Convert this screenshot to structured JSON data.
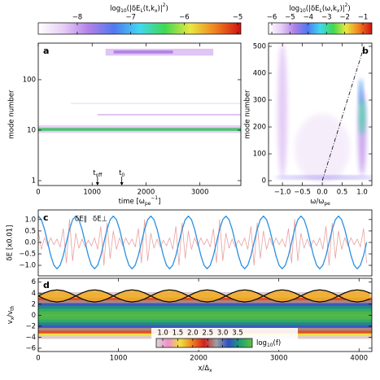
{
  "chart_data": [
    {
      "type": "heatmap",
      "panel_label": "a",
      "colorbar": {
        "label": [
          "log",
          "10",
          "(|δE",
          "L",
          "(t,k",
          "x",
          ")|",
          "2",
          ")"
        ],
        "lim": [
          -8.73,
          -4.94
        ],
        "ticks": [
          {
            "value": -8,
            "label": "−8"
          },
          {
            "value": -7,
            "label": "−7"
          },
          {
            "value": -6,
            "label": "−6"
          },
          {
            "value": -5,
            "label": "−5"
          }
        ],
        "colormap": [
          "#ffffff",
          "#e6cdf5",
          "#b080e8",
          "#5078f0",
          "#40d8f0",
          "#40d850",
          "#e8e840",
          "#f08020",
          "#d01010"
        ]
      },
      "xlim": [
        0,
        3760
      ],
      "xticks": [
        0,
        1000,
        2000,
        3000
      ],
      "xlabel": [
        "time [ω",
        "pe",
        "−1",
        "]"
      ],
      "ylim": [
        0.8,
        530
      ],
      "ylog": true,
      "yticks": [
        1,
        10,
        100
      ],
      "ylabel": "mode number",
      "annotations": [
        {
          "x": 1100,
          "text": [
            "t",
            "off"
          ]
        },
        {
          "x": 1550,
          "text": [
            "t",
            "0"
          ]
        }
      ],
      "bands": [
        {
          "x0": 0,
          "x1": 3760,
          "y0": 8.8,
          "y1": 12.5,
          "level": -8.3
        },
        {
          "x0": 0,
          "x1": 3760,
          "y0": 9.6,
          "y1": 11.2,
          "level": -6.6
        },
        {
          "x0": 0,
          "x1": 3760,
          "y0": 10,
          "y1": 10.6,
          "level": -5.4
        },
        {
          "x0": 1100,
          "x1": 3760,
          "y0": 19.5,
          "y1": 21,
          "level": -8.2
        },
        {
          "x0": 600,
          "x1": 3760,
          "y0": 33,
          "y1": 34.5,
          "level": -8.4
        },
        {
          "x0": 1250,
          "x1": 3250,
          "y0": 300,
          "y1": 410,
          "level": -8.2
        },
        {
          "x0": 1400,
          "x1": 2500,
          "y0": 330,
          "y1": 380,
          "level": -7.8
        }
      ]
    },
    {
      "type": "spectrum",
      "panel_label": "b",
      "colorbar": {
        "label": [
          "log",
          "10",
          "(|δE",
          "L",
          "(ω,k",
          "x",
          ")|",
          "2",
          ")"
        ],
        "lim": [
          -6.18,
          -0.51
        ],
        "ticks": [
          {
            "value": -6,
            "label": "−6"
          },
          {
            "value": -5,
            "label": "−5"
          },
          {
            "value": -4,
            "label": "−4"
          },
          {
            "value": -3,
            "label": "−3"
          },
          {
            "value": -2,
            "label": "−2"
          },
          {
            "value": -1,
            "label": "−1"
          }
        ],
        "colormap": [
          "#ffffff",
          "#e6cdf5",
          "#b080e8",
          "#5078f0",
          "#40d8f0",
          "#40d850",
          "#e8e840",
          "#f08020",
          "#d01010"
        ]
      },
      "xlim": [
        -1.35,
        1.245
      ],
      "xticks": [
        {
          "value": -1,
          "label": "−1.0"
        },
        {
          "value": -0.5,
          "label": "−0.5"
        },
        {
          "value": 0,
          "label": "0.0"
        },
        0.5,
        {
          "value": 1,
          "label": "1.0"
        }
      ],
      "xlabel": [
        "ω/ω",
        "pe"
      ],
      "ylim": [
        -18,
        512
      ],
      "yticks": [
        0,
        100,
        200,
        300,
        400,
        500
      ],
      "ylabel": "mode number",
      "blobs": [
        {
          "x": -1.0,
          "y": 260,
          "rx": 0.12,
          "ry": 250,
          "level": -5.4
        },
        {
          "x": 0.0,
          "y": 120,
          "rx": 0.7,
          "ry": 130,
          "level": -5.9
        },
        {
          "x": 1.0,
          "y": 180,
          "rx": 0.1,
          "ry": 160,
          "level": -5.0
        },
        {
          "x": 1.0,
          "y": 240,
          "rx": 0.07,
          "ry": 70,
          "level": -3.0
        },
        {
          "x": 0.97,
          "y": 330,
          "rx": 0.05,
          "ry": 50,
          "level": -3.8
        },
        {
          "x": 0.1,
          "y": 12,
          "rx": 1.3,
          "ry": 5,
          "level": -4.5
        }
      ],
      "guide": {
        "x": [
          0,
          1.05
        ],
        "y": [
          0,
          500
        ]
      }
    },
    {
      "type": "line",
      "panel_label": "c",
      "xlim": [
        0,
        4160
      ],
      "ylim": [
        -1.46,
        1.42
      ],
      "yticks": [
        {
          "value": 1,
          "label": "1.0"
        },
        0.5,
        {
          "value": 0,
          "label": "0.0"
        },
        {
          "value": -0.5,
          "label": "−0.5"
        },
        {
          "value": -1,
          "label": "−1.0"
        }
      ],
      "ylabel": "δE [x0.01]",
      "x": [
        0,
        39,
        78,
        117,
        156,
        195,
        234,
        273,
        312,
        351,
        390,
        429,
        468,
        507,
        546,
        585,
        624,
        663,
        702,
        741,
        780,
        819,
        858,
        897,
        936,
        975,
        1014,
        1053,
        1092,
        1131,
        1170,
        1209,
        1248,
        1287,
        1326,
        1365,
        1404,
        1443,
        1482,
        1521,
        1560,
        1599,
        1638,
        1677,
        1716,
        1755,
        1794,
        1833,
        1872,
        1911,
        1950,
        1989,
        2028,
        2067,
        2106,
        2145,
        2184,
        2223,
        2262,
        2301,
        2340,
        2379,
        2418,
        2457,
        2496,
        2535,
        2574,
        2613,
        2652,
        2691,
        2730,
        2769,
        2808,
        2847,
        2886,
        2925,
        2964,
        3003,
        3042,
        3081,
        3120,
        3159,
        3198,
        3237,
        3276,
        3315,
        3354,
        3393,
        3432,
        3471,
        3510,
        3549,
        3588,
        3627,
        3666,
        3705,
        3744,
        3783,
        3822,
        3861,
        3900,
        3939,
        3978,
        4017,
        4056,
        4095
      ],
      "series": [
        {
          "name": "δE∥",
          "color": "#e8a0a0",
          "values": [
            0.5,
            -0.3,
            0.2,
            -0.15,
            0.2,
            -0.1,
            0.15,
            -0.2,
            0.6,
            -0.9,
            1.0,
            -0.8,
            0.4,
            -0.25,
            0.15,
            -0.2,
            0.1,
            -0.15,
            0.2,
            -0.3,
            0.7,
            -1.0,
            0.85,
            -0.7,
            0.5,
            -0.3,
            0.2,
            -0.15,
            0.2,
            -0.1,
            0.15,
            -0.2,
            0.6,
            -0.9,
            1.0,
            -0.8,
            0.4,
            -0.25,
            0.15,
            -0.2,
            0.1,
            -0.15,
            0.2,
            -0.3,
            0.7,
            -1.0,
            0.85,
            -0.7,
            0.5,
            -0.3,
            0.2,
            -0.15,
            0.2,
            -0.1,
            0.15,
            -0.2,
            0.6,
            -0.9,
            1.0,
            -0.8,
            0.4,
            -0.25,
            0.15,
            -0.2,
            0.1,
            -0.15,
            0.2,
            -0.3,
            0.7,
            -1.0,
            0.85,
            -0.7,
            0.5,
            -0.3,
            0.2,
            -0.15,
            0.2,
            -0.1,
            0.15,
            -0.2,
            0.6,
            -0.9,
            1.0,
            -0.8,
            0.4,
            -0.25,
            0.15,
            -0.2,
            0.1,
            -0.15,
            0.2,
            -0.3,
            0.7,
            -1.0,
            0.85,
            -0.7,
            0.5,
            -0.3,
            0.2,
            -0.15,
            0.2,
            -0.1,
            0.15,
            -0.2,
            0.6,
            -0.9
          ]
        },
        {
          "name": "δE⊥",
          "color": "#2a8fe0",
          "values": [
            1.15,
            0.996,
            0.575,
            0,
            -0.575,
            -0.996,
            -1.15,
            -0.996,
            -0.575,
            0,
            0.575,
            0.996,
            1.15,
            0.996,
            0.575,
            0,
            -0.575,
            -0.996,
            -1.15,
            -0.996,
            -0.575,
            0,
            0.575,
            0.996,
            1.15,
            0.996,
            0.575,
            0,
            -0.575,
            -0.996,
            -1.15,
            -0.996,
            -0.575,
            0,
            0.575,
            0.996,
            1.15,
            0.996,
            0.575,
            0,
            -0.575,
            -0.996,
            -1.15,
            -0.996,
            -0.575,
            0,
            0.575,
            0.996,
            1.15,
            0.996,
            0.575,
            0,
            -0.575,
            -0.996,
            -1.15,
            -0.996,
            -0.575,
            0,
            0.575,
            0.996,
            1.15,
            0.996,
            0.575,
            0,
            -0.575,
            -0.996,
            -1.15,
            -0.996,
            -0.575,
            0,
            0.575,
            0.996,
            1.15,
            0.996,
            0.575,
            0,
            -0.575,
            -0.996,
            -1.15,
            -0.996,
            -0.575,
            0,
            0.575,
            0.996,
            1.15,
            0.996,
            0.575,
            0,
            -0.575,
            -0.996,
            -1.15,
            -0.996,
            -0.575,
            0,
            0.575,
            0.996,
            1.15,
            0.996,
            0.575,
            0,
            -0.575,
            -0.996,
            -1.15,
            -0.996,
            -0.575,
            0
          ]
        }
      ]
    },
    {
      "type": "phase-space",
      "panel_label": "d",
      "xlim": [
        0,
        4160
      ],
      "xticks": [
        0,
        1000,
        2000,
        3000,
        4000
      ],
      "xlabel": [
        "x/Δ",
        "x"
      ],
      "ylim": [
        -6.6,
        6.7
      ],
      "yticks": [
        {
          "value": -6,
          "label": "−6"
        },
        {
          "value": -4,
          "label": "−4"
        },
        {
          "value": -2,
          "label": "−2"
        },
        0,
        2,
        4,
        6
      ],
      "ylabel": [
        "v",
        "x",
        "/v",
        "th"
      ],
      "colorbar": {
        "label": [
          "log",
          "10",
          "(f)"
        ],
        "lim": [
          0.78,
          3.99
        ],
        "ticks": [
          {
            "value": 1,
            "label": "1.0"
          },
          1.5,
          {
            "value": 2,
            "label": "2.0"
          },
          2.5,
          {
            "value": 3,
            "label": "3.0"
          },
          3.5
        ],
        "colormap": [
          "#d8d8d8",
          "#f090c8",
          "#f0e040",
          "#f08020",
          "#d02020",
          "#a0a0a0",
          "#3050c0",
          "#20a070",
          "#60c040"
        ]
      },
      "profile": {
        "v": [
          -6,
          -5.5,
          -5,
          -4.5,
          -4,
          -3.5,
          -3,
          -2.5,
          -2,
          -1.5,
          -1,
          -0.5,
          0,
          0.5,
          1,
          1.5,
          2,
          2.5,
          3,
          3.5,
          4,
          4.5,
          5,
          5.5,
          6
        ],
        "level": [
          -2.94,
          -1.85,
          -0.85,
          0.05,
          0.86,
          1.57,
          2.19,
          2.71,
          3.14,
          3.47,
          3.71,
          3.85,
          3.9,
          3.85,
          3.71,
          3.47,
          3.14,
          2.71,
          2.19,
          1.57,
          0.86,
          0.05,
          -0.85,
          -1.85,
          -2.94
        ]
      },
      "trapped_level": 1.8,
      "separatrix": {
        "x": [
          0,
          78,
          156,
          234,
          312,
          390,
          468,
          546,
          624,
          702,
          780,
          858,
          936,
          1014,
          1092,
          1170,
          1248,
          1326,
          1404,
          1482,
          1560,
          1638,
          1716,
          1794,
          1872,
          1950,
          2028,
          2106,
          2184,
          2262,
          2340,
          2418,
          2496,
          2574,
          2652,
          2730,
          2808,
          2886,
          2964,
          3042,
          3120,
          3198,
          3276,
          3354,
          3432,
          3510,
          3588,
          3666,
          3744,
          3822,
          3900,
          3978,
          4056,
          4134
        ],
        "upper": [
          3.5,
          4.05,
          4.45,
          4.6,
          4.45,
          4.05,
          3.5,
          4.05,
          4.45,
          4.6,
          4.45,
          4.05,
          3.5,
          4.05,
          4.45,
          4.6,
          4.45,
          4.05,
          3.5,
          4.05,
          4.45,
          4.6,
          4.45,
          4.05,
          3.5,
          4.05,
          4.45,
          4.6,
          4.45,
          4.05,
          3.5,
          4.05,
          4.45,
          4.6,
          4.45,
          4.05,
          3.5,
          4.05,
          4.45,
          4.6,
          4.45,
          4.05,
          3.5,
          4.05,
          4.45,
          4.6,
          4.45,
          4.05,
          3.5,
          4.05,
          4.45,
          4.6,
          4.45,
          4.05
        ],
        "lower": [
          3.5,
          2.95,
          2.55,
          2.4,
          2.55,
          2.95,
          3.5,
          2.95,
          2.55,
          2.4,
          2.55,
          2.95,
          3.5,
          2.95,
          2.55,
          2.4,
          2.55,
          2.95,
          3.5,
          2.95,
          2.55,
          2.4,
          2.55,
          2.95,
          3.5,
          2.95,
          2.55,
          2.4,
          2.55,
          2.95,
          3.5,
          2.95,
          2.55,
          2.4,
          2.55,
          2.95,
          3.5,
          2.95,
          2.55,
          2.4,
          2.55,
          2.95,
          3.5,
          2.95,
          2.55,
          2.4,
          2.55,
          2.95,
          3.5,
          2.95,
          2.55,
          2.4,
          2.55,
          2.95
        ]
      }
    }
  ]
}
